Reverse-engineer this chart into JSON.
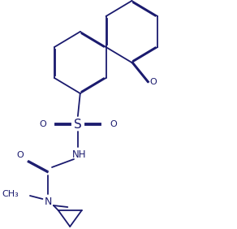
{
  "background_color": "#ffffff",
  "line_color": "#1a1a6e",
  "lw": 1.3,
  "dbo": 0.012,
  "figsize": [
    2.92,
    2.82
  ],
  "dpi": 100,
  "xlim": [
    0,
    2.92
  ],
  "ylim": [
    0,
    2.82
  ]
}
